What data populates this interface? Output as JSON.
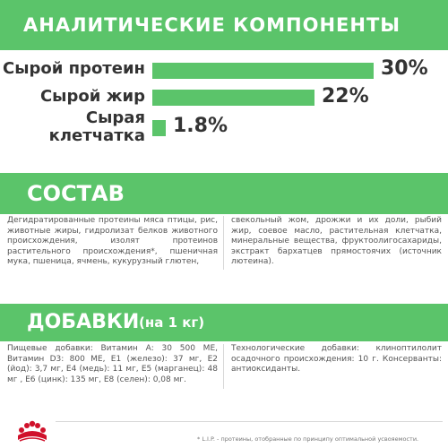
{
  "sections": {
    "analysis_title": "АНАЛИТИЧЕСКИЕ КОМПОНЕНТЫ",
    "composition_title": "СОСТАВ",
    "additives_title": "ДОБАВКИ",
    "additives_sub": "(на 1 кг)"
  },
  "nutrients": [
    {
      "label": "Сырой протеин",
      "value": "30%",
      "fraction": 0.3
    },
    {
      "label": "Сырой жир",
      "value": "22%",
      "fraction": 0.22
    },
    {
      "label_line1": "Сырая",
      "label_line2": "клетчатка",
      "value": "1.8%",
      "fraction": 0.018
    }
  ],
  "composition": {
    "left": "Дегидратированные протеины мяса птицы, рис, животные жиры, гидролизат белков животного происхождения, изолят протеинов растительного происхождения*, пшеничная мука, пшеница, ячмень, кукурузный глютен,",
    "right": "свекольный жом, дрожжи и их доли, рыбий жир, соевое масло, растительная клетчатка, минеральные вещества, фруктоолигосахариды, экстракт бархатцев прямостоячих (источник лютеина)."
  },
  "additives": {
    "left": "Пищевые добавки: Витамин А: 30 500 МЕ, Витамин D3: 800 МЕ, Е1 (железо): 37 мг, Е2 (йод): 3,7 мг, Е4 (медь): 11 мг, Е5 (марганец): 48 мг , Е6 (цинк): 135 мг, Е8 (селен): 0,08 мг.",
    "right": "Технологические добавки: клиноптилолит осадочного происхождения: 10 г. Консерванты: антиоксиданты."
  },
  "footnote": "* L.I.P. - протеины, отобранные по принципу оптимальной усвояемости.",
  "colors": {
    "accent": "#5bc46a",
    "brand_red": "#d0112b"
  }
}
